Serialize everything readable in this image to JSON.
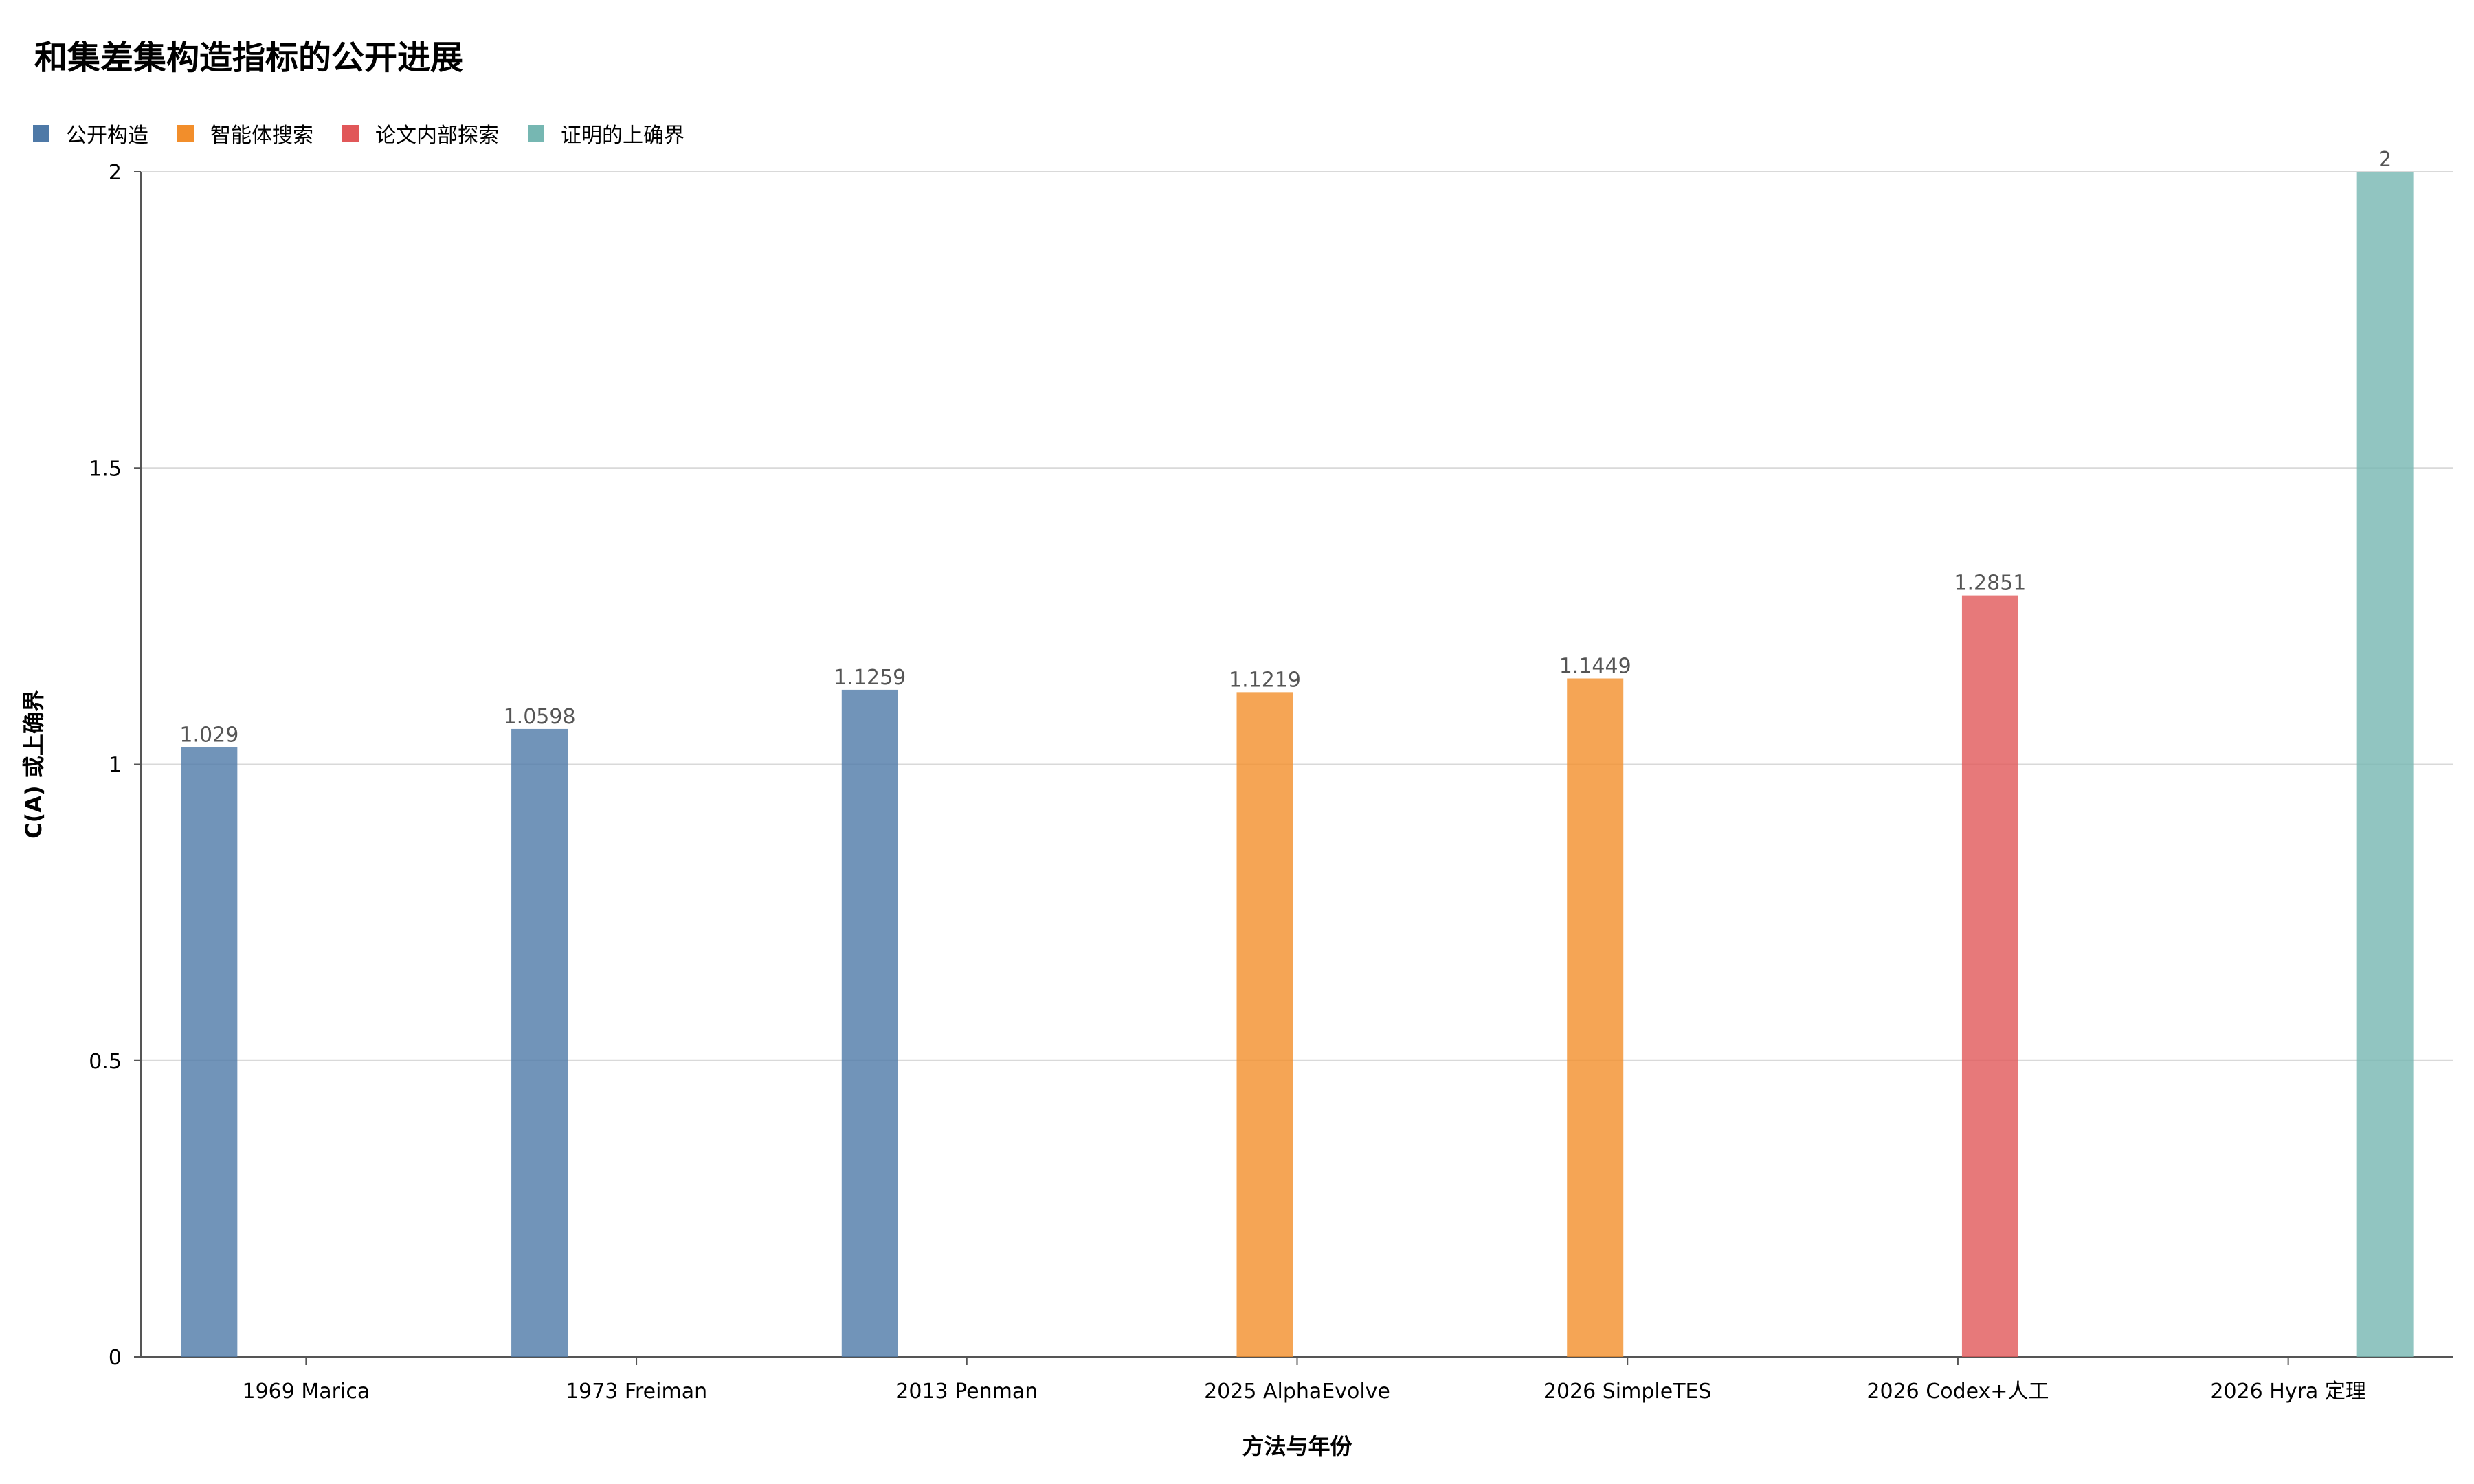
{
  "chart_data": {
    "type": "bar",
    "title": "和集差集构造指标的公开进展",
    "xlabel": "方法与年份",
    "ylabel": "C(A) 或上确界",
    "ylim": [
      0,
      2
    ],
    "yticks": [
      "0",
      "0.5",
      "1",
      "1.5",
      "2"
    ],
    "ytick_values": [
      0,
      0.5,
      1,
      1.5,
      2
    ],
    "grid": true,
    "legend_position": "top-left",
    "categories": [
      "1969 Marica",
      "1973 Freiman",
      "2013 Penman",
      "2025 AlphaEvolve",
      "2026 SimpleTES",
      "2026 Codex+人工",
      "2026 Hyra 定理"
    ],
    "series": [
      {
        "name": "公开构造",
        "color": "#4e79a7",
        "values": [
          1.029,
          1.0598,
          1.1259,
          null,
          null,
          null,
          null
        ],
        "labels": [
          "1.029",
          "1.0598",
          "1.1259",
          "",
          "",
          "",
          ""
        ]
      },
      {
        "name": "智能体搜索",
        "color": "#f28e2b",
        "values": [
          null,
          null,
          null,
          1.1219,
          1.1449,
          null,
          null
        ],
        "labels": [
          "",
          "",
          "",
          "1.1219",
          "1.1449",
          "",
          ""
        ]
      },
      {
        "name": "论文内部探索",
        "color": "#e15759",
        "values": [
          null,
          null,
          null,
          null,
          null,
          1.2851,
          null
        ],
        "labels": [
          "",
          "",
          "",
          "",
          "",
          "1.2851",
          ""
        ]
      },
      {
        "name": "证明的上确界",
        "color": "#76b7b2",
        "values": [
          null,
          null,
          null,
          null,
          null,
          null,
          2
        ],
        "labels": [
          "",
          "",
          "",
          "",
          "",
          "",
          "2"
        ]
      }
    ]
  }
}
